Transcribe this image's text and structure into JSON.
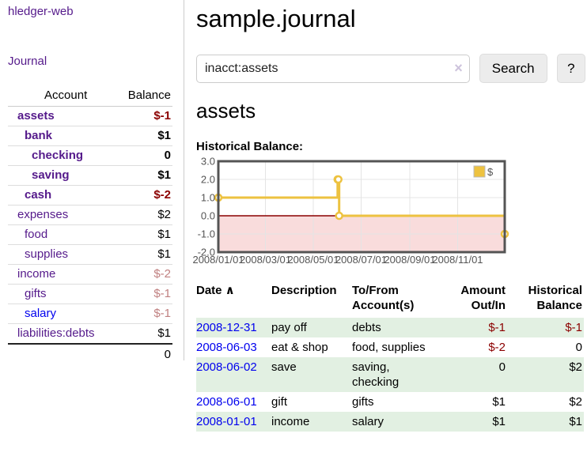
{
  "colors": {
    "purple_link": "#551a8b",
    "blue_link": "#0000ee",
    "negative_strong": "#8b0000",
    "negative_soft": "#c08080",
    "row_stripe_green": "#e2f0e2",
    "chart_line": "#edc240",
    "chart_negative_fill": "#f9dcdc",
    "chart_zero_line": "#8b0000",
    "chart_grid": "#e4e4e4",
    "chart_border": "#545454"
  },
  "sidebar": {
    "app_title": "hledger-web",
    "journal_link": "Journal",
    "accounts_table": {
      "account_header": "Account",
      "balance_header": "Balance",
      "rows": [
        {
          "account": "assets",
          "indent": 1,
          "bold": true,
          "balance": "$-1",
          "balance_tone": "neg",
          "link_tone": "purple"
        },
        {
          "account": "bank",
          "indent": 2,
          "bold": true,
          "balance": "$1",
          "balance_tone": "",
          "link_tone": "purple"
        },
        {
          "account": "checking",
          "indent": 3,
          "bold": true,
          "balance": "0",
          "balance_tone": "",
          "link_tone": "purple"
        },
        {
          "account": "saving",
          "indent": 3,
          "bold": true,
          "balance": "$1",
          "balance_tone": "",
          "link_tone": "purple"
        },
        {
          "account": "cash",
          "indent": 2,
          "bold": true,
          "balance": "$-2",
          "balance_tone": "neg",
          "link_tone": "purple"
        },
        {
          "account": "expenses",
          "indent": 1,
          "bold": false,
          "balance": "$2",
          "balance_tone": "",
          "link_tone": "purple"
        },
        {
          "account": "food",
          "indent": 2,
          "bold": false,
          "balance": "$1",
          "balance_tone": "",
          "link_tone": "purple"
        },
        {
          "account": "supplies",
          "indent": 2,
          "bold": false,
          "balance": "$1",
          "balance_tone": "",
          "link_tone": "purple"
        },
        {
          "account": "income",
          "indent": 1,
          "bold": false,
          "balance": "$-2",
          "balance_tone": "negsoft",
          "link_tone": "purple"
        },
        {
          "account": "gifts",
          "indent": 2,
          "bold": false,
          "balance": "$-1",
          "balance_tone": "negsoft",
          "link_tone": "purple"
        },
        {
          "account": "salary",
          "indent": 2,
          "bold": false,
          "balance": "$-1",
          "balance_tone": "negsoft",
          "link_tone": "blue"
        },
        {
          "account": "liabilities:debts",
          "indent": 1,
          "bold": false,
          "balance": "$1",
          "balance_tone": "",
          "link_tone": "purple"
        }
      ],
      "total_balance": "0"
    }
  },
  "main": {
    "title": "sample.journal",
    "search": {
      "query": "inacct:assets",
      "clear_icon": "×",
      "search_button": "Search",
      "help_button": "?"
    },
    "account_heading": "assets",
    "chart_title": "Historical Balance:",
    "register": {
      "headers": [
        {
          "key": "date",
          "label": "Date",
          "align": "left",
          "sortable": true,
          "sort_indicator": "∧"
        },
        {
          "key": "description",
          "label": "Description",
          "align": "left",
          "sortable": false
        },
        {
          "key": "accounts",
          "label": "To/From Account(s)",
          "align": "left",
          "sortable": false
        },
        {
          "key": "amount",
          "label": "Amount Out/In",
          "align": "right",
          "sortable": false
        },
        {
          "key": "balance",
          "label": "Historical Balance",
          "align": "right",
          "sortable": false
        }
      ],
      "rows": [
        {
          "date": "2008-12-31",
          "description": "pay off",
          "accounts": "debts",
          "amount": "$-1",
          "amount_tone": "neg",
          "balance": "$-1",
          "balance_tone": "neg"
        },
        {
          "date": "2008-06-03",
          "description": "eat & shop",
          "accounts": "food, supplies",
          "amount": "$-2",
          "amount_tone": "neg",
          "balance": "0",
          "balance_tone": ""
        },
        {
          "date": "2008-06-02",
          "description": "save",
          "accounts": "saving, checking",
          "amount": "0",
          "amount_tone": "",
          "balance": "$2",
          "balance_tone": ""
        },
        {
          "date": "2008-06-01",
          "description": "gift",
          "accounts": "gifts",
          "amount": "$1",
          "amount_tone": "",
          "balance": "$2",
          "balance_tone": ""
        },
        {
          "date": "2008-01-01",
          "description": "income",
          "accounts": "salary",
          "amount": "$1",
          "amount_tone": "",
          "balance": "$1",
          "balance_tone": ""
        }
      ]
    }
  },
  "chart_data": {
    "type": "line",
    "step": true,
    "title": "Historical Balance",
    "legend": "$",
    "legend_position": "top-right",
    "grid": true,
    "xrange": [
      "2008-01-01",
      "2008-12-31"
    ],
    "ylim": [
      -2,
      3
    ],
    "yticks": [
      3,
      2,
      1,
      0,
      -1,
      -2
    ],
    "xticks": [
      "2008/01/01",
      "2008/03/01",
      "2008/05/01",
      "2008/07/01",
      "2008/09/01",
      "2008/11/01"
    ],
    "negative_fill": "#f9dcdc",
    "zero_line_color": "#8b0000",
    "grid_color": "#e4e4e4",
    "border_color": "#545454",
    "series": [
      {
        "name": "$",
        "color": "#edc240",
        "points": [
          {
            "date": "2008-01-01",
            "value": 1
          },
          {
            "date": "2008-06-01",
            "value": 2
          },
          {
            "date": "2008-06-02",
            "value": 2
          },
          {
            "date": "2008-06-03",
            "value": 0
          },
          {
            "date": "2008-12-31",
            "value": -1
          }
        ]
      }
    ]
  }
}
